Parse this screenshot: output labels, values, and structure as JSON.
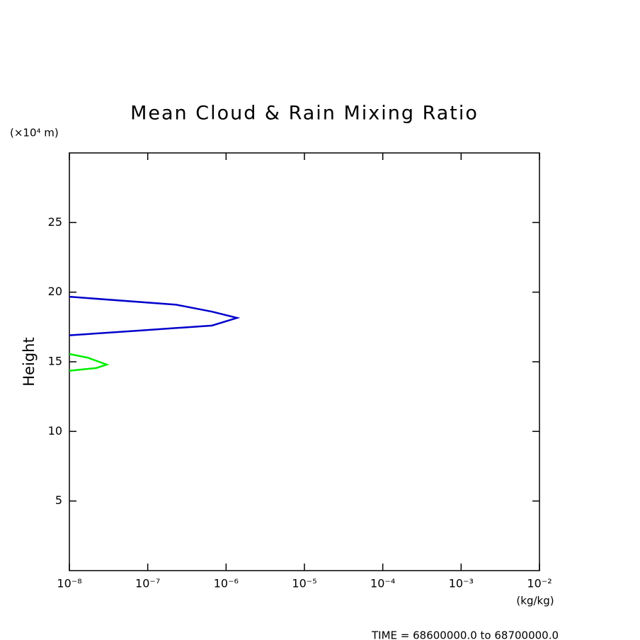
{
  "chart_data": {
    "type": "line",
    "title": "Mean Cloud & Rain Mixing Ratio",
    "y_label": "Height",
    "y_unit": "(×10⁴ m)",
    "x_unit": "(kg/kg)",
    "footer": "TIME = 68600000.0 to 68700000.0",
    "xscale": "log",
    "xlim": [
      1e-08,
      0.01
    ],
    "xticks": [
      {
        "value": 1e-08,
        "label": "10⁻⁸"
      },
      {
        "value": 1e-07,
        "label": "10⁻⁷"
      },
      {
        "value": 1e-06,
        "label": "10⁻⁶"
      },
      {
        "value": 1e-05,
        "label": "10⁻⁵"
      },
      {
        "value": 0.0001,
        "label": "10⁻⁴"
      },
      {
        "value": 0.001,
        "label": "10⁻³"
      },
      {
        "value": 0.01,
        "label": "10⁻²"
      }
    ],
    "ylim": [
      0,
      30
    ],
    "yticks": [
      5,
      10,
      15,
      20,
      25
    ],
    "series": [
      {
        "color": "#0000cc",
        "x": [
          1e-08,
          2.3e-07,
          6.6e-07,
          1.38e-06,
          6.6e-07,
          8.3e-08,
          1e-08
        ],
        "y": [
          19.67,
          19.1,
          18.6,
          18.15,
          17.6,
          17.25,
          16.9
        ]
      },
      {
        "color": "#00ee00",
        "x": [
          1e-08,
          1.7e-08,
          3e-08,
          2.2e-08,
          1e-08
        ],
        "y": [
          15.56,
          15.3,
          14.8,
          14.55,
          14.35
        ]
      }
    ]
  }
}
